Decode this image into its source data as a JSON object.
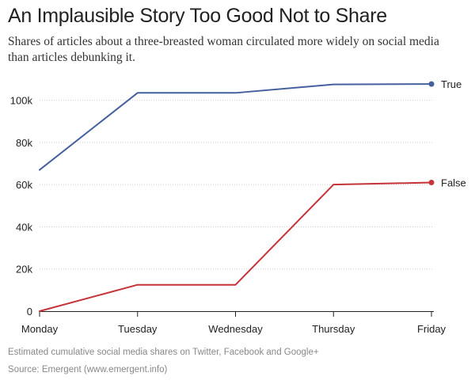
{
  "title": "An Implausible Story Too Good Not to Share",
  "subtitle": "Shares of articles about a three-breasted woman circulated more widely on social media than articles debunking it.",
  "caption": "Estimated cumulative social media shares on Twitter, Facebook and Google+",
  "source": "Source: Emergent (www.emergent.info)",
  "chart_data": {
    "type": "line",
    "title": "An Implausible Story Too Good Not to Share",
    "xlabel": "",
    "ylabel": "",
    "categories": [
      "Monday",
      "Tuesday",
      "Wednesday",
      "Thursday",
      "Friday"
    ],
    "ylim": [
      0,
      110000
    ],
    "yticks": [
      0,
      20000,
      40000,
      60000,
      80000,
      100000
    ],
    "ytick_labels": [
      "0",
      "20k",
      "40k",
      "60k",
      "80k",
      "100k"
    ],
    "grid": "horizontal, dotted",
    "legend": "direct labels at right end of each line",
    "series": [
      {
        "name": "True",
        "color": "#44609e",
        "values": [
          67000,
          103500,
          103500,
          107500,
          107700
        ]
      },
      {
        "name": "False",
        "color": "#c43438",
        "values": [
          0,
          12500,
          12500,
          60000,
          61000
        ]
      }
    ]
  }
}
